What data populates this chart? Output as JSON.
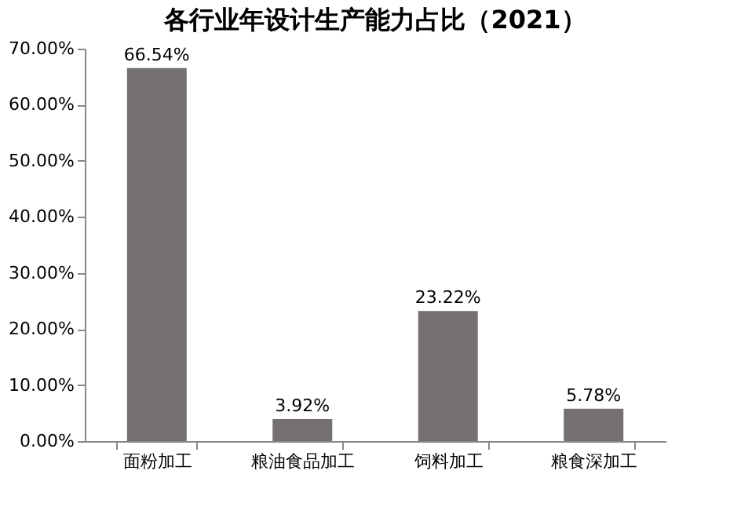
{
  "chart_data": {
    "type": "bar",
    "title": "各行业年设计生产能力占比（2021）",
    "categories": [
      "面粉加工",
      "粮油食品加工",
      "饲料加工",
      "粮食深加工"
    ],
    "values": [
      66.54,
      3.92,
      23.22,
      5.78
    ],
    "value_labels": [
      "66.54%",
      "3.92%",
      "23.22%",
      "5.78%"
    ],
    "color": "#767171",
    "ylim": [
      0,
      70
    ],
    "yticks": [
      {
        "value": 0,
        "label": "0.00%"
      },
      {
        "value": 10,
        "label": "10.00%"
      },
      {
        "value": 20,
        "label": "20.00%"
      },
      {
        "value": 30,
        "label": "30.00%"
      },
      {
        "value": 40,
        "label": "40.00%"
      },
      {
        "value": 50,
        "label": "50.00%"
      },
      {
        "value": 60,
        "label": "60.00%"
      },
      {
        "value": 70,
        "label": "70.00%"
      }
    ],
    "grid": false
  }
}
